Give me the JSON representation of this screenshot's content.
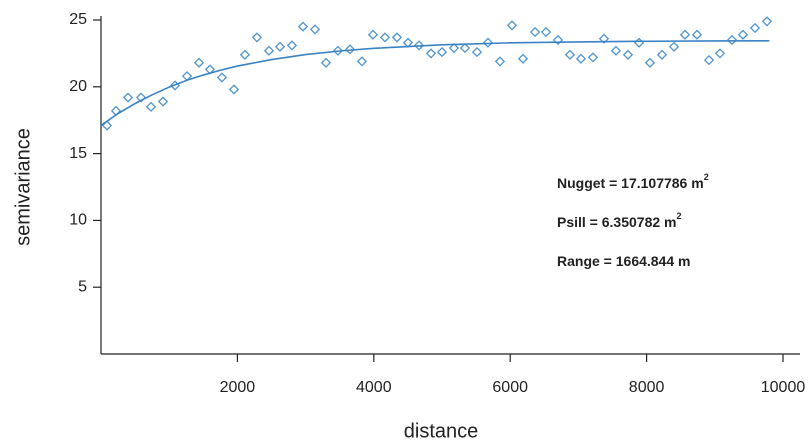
{
  "chart_data": {
    "type": "scatter",
    "x_label": "distance",
    "y_label": "semivariance",
    "xlim": [
      0,
      10000
    ],
    "ylim": [
      0,
      25
    ],
    "xticks": [
      2000,
      4000,
      6000,
      8000,
      10000
    ],
    "yticks": [
      5,
      10,
      15,
      20,
      25
    ],
    "grid": false,
    "series": [
      {
        "type": "scatter",
        "color": "#4f95cf",
        "x": [
          88,
          220,
          396,
          587,
          733,
          909,
          1085,
          1261,
          1437,
          1598,
          1774,
          1950,
          2111,
          2287,
          2463,
          2625,
          2800,
          2962,
          3138,
          3299,
          3475,
          3651,
          3827,
          3988,
          4164,
          4340,
          4501,
          4663,
          4839,
          5000,
          5176,
          5337,
          5513,
          5674,
          5850,
          6026,
          6188,
          6364,
          6525,
          6701,
          6877,
          7038,
          7214,
          7375,
          7551,
          7727,
          7889,
          8050,
          8226,
          8402,
          8563,
          8739,
          8915,
          9076,
          9252,
          9413,
          9589,
          9765
        ],
        "values": [
          17.1,
          18.2,
          19.2,
          19.2,
          18.5,
          18.9,
          20.1,
          20.8,
          21.8,
          21.3,
          20.7,
          19.8,
          22.4,
          23.7,
          22.7,
          23.0,
          23.1,
          24.5,
          24.3,
          21.8,
          22.7,
          22.8,
          21.9,
          23.9,
          23.7,
          23.7,
          23.3,
          23.1,
          22.5,
          22.6,
          22.9,
          22.9,
          22.6,
          23.3,
          21.9,
          24.6,
          22.1,
          24.1,
          24.1,
          23.5,
          22.4,
          22.1,
          22.2,
          23.6,
          22.7,
          22.4,
          23.3,
          21.8,
          22.4,
          23.0,
          23.9,
          23.9,
          22.0,
          22.5,
          23.5,
          23.9,
          24.4,
          24.9
        ]
      },
      {
        "type": "line",
        "color": "#3a82c4",
        "x": [
          0,
          250,
          500,
          750,
          1000,
          1250,
          1500,
          1750,
          2000,
          2500,
          3000,
          3500,
          4000,
          5000,
          6000,
          7000,
          8000,
          9000,
          9800
        ],
        "values": [
          17.11,
          18.0,
          18.75,
          19.4,
          19.98,
          20.47,
          20.88,
          21.24,
          21.55,
          22.04,
          22.41,
          22.68,
          22.88,
          23.14,
          23.29,
          23.36,
          23.41,
          23.43,
          23.44
        ]
      }
    ],
    "annotations": [
      {
        "text": "Nugget = 17.107786 m",
        "sup": "2"
      },
      {
        "text": "Psill = 6.350782 m",
        "sup": "2"
      },
      {
        "text": "Range = 1664.844 m"
      }
    ]
  }
}
